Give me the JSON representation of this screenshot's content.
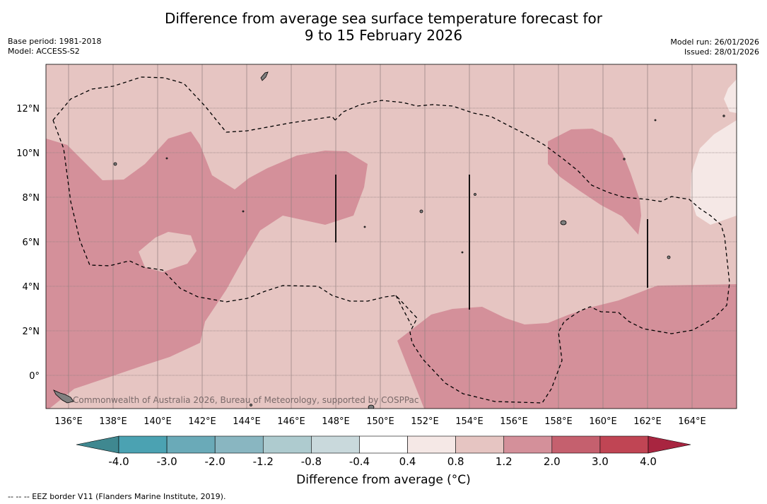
{
  "title": {
    "line1": "Difference from average sea surface temperature forecast for",
    "line2": "9 to 15 February 2026"
  },
  "meta": {
    "base_period": "Base period: 1981-2018",
    "model": "Model: ACCESS-S2",
    "model_run": "Model run: 26/01/2026",
    "issued": "Issued: 28/01/2026"
  },
  "map": {
    "longitude_labels": [
      "136°E",
      "138°E",
      "140°E",
      "142°E",
      "144°E",
      "146°E",
      "148°E",
      "150°E",
      "152°E",
      "154°E",
      "156°E",
      "158°E",
      "160°E",
      "162°E",
      "164°E"
    ],
    "latitude_labels": [
      "12°N",
      "10°N",
      "8°N",
      "6°N",
      "4°N",
      "2°N",
      "0°"
    ],
    "credit": "Commonwealth of Australia 2026, Bureau of Meteorology, supported by COSPPac",
    "colors": {
      "background": "#e6c5c2",
      "warm": "#d4909a",
      "light": "#f5e8e6",
      "grid": "#8f7f7f",
      "land": "#808080"
    }
  },
  "colorbar": {
    "ticks": [
      "-4.0",
      "-3.0",
      "-2.0",
      "-1.2",
      "-0.8",
      "-0.4",
      "0.4",
      "0.8",
      "1.2",
      "2.0",
      "3.0",
      "4.0"
    ],
    "colors": [
      "#3f8890",
      "#4ba2b2",
      "#6aaab8",
      "#89b6c1",
      "#aecbcf",
      "#c9d9dc",
      "#ffffff",
      "#f5e8e6",
      "#e6c5c2",
      "#d4909a",
      "#c5606e",
      "#c04554",
      "#a82540"
    ],
    "label": "Difference from average (°C)"
  },
  "footnote": "--  --  -- EEZ border V11 (Flanders Marine Institute, 2019)."
}
